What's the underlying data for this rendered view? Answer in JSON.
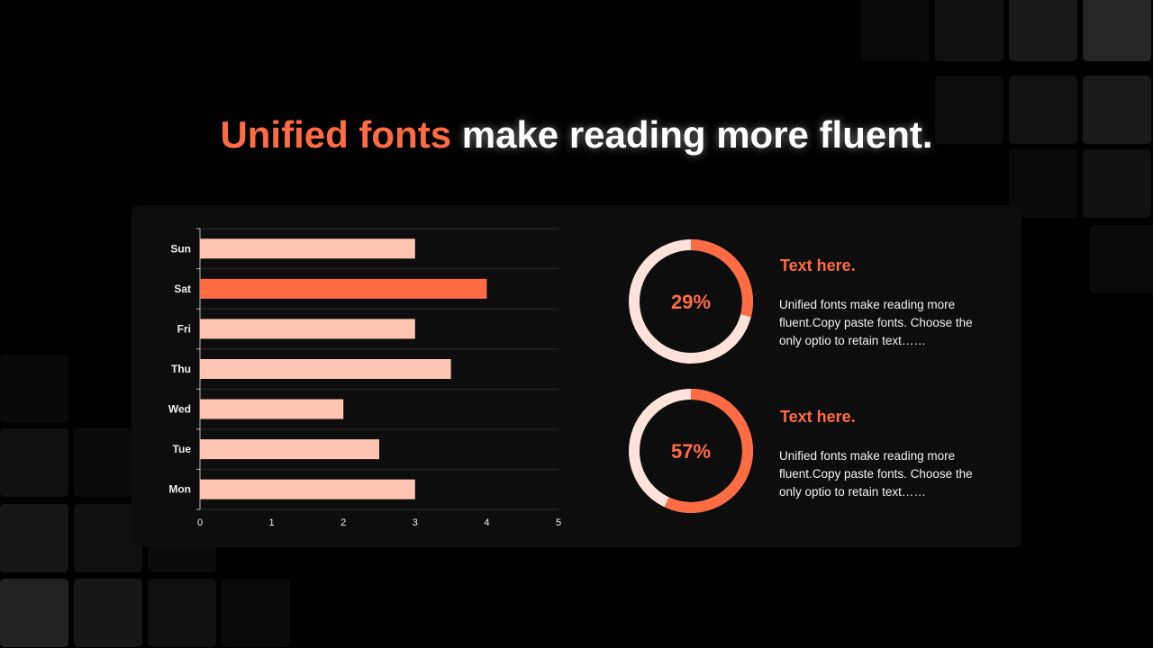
{
  "title": {
    "highlight": "Unified fonts",
    "rest": " make reading more fluent."
  },
  "colors": {
    "accent": "#ff6b43",
    "light_bar": "#ffc4b2",
    "donut_track": "#ffe3da",
    "panel": "#0d0d0d"
  },
  "chart_data": {
    "type": "bar",
    "orientation": "horizontal",
    "categories": [
      "Sun",
      "Sat",
      "Fri",
      "Thu",
      "Wed",
      "Tue",
      "Mon"
    ],
    "values": [
      3,
      4,
      3,
      3.5,
      2,
      2.5,
      3
    ],
    "highlighted_category": "Sat",
    "xlim": [
      0,
      5
    ],
    "xticks": [
      "0",
      "1",
      "2",
      "3",
      "4",
      "5"
    ],
    "grid": true
  },
  "cards": [
    {
      "percent": 29,
      "percent_label": "29%",
      "title": "Text here.",
      "text": "Unified fonts make reading more fluent.Copy paste fonts. Choose the only optio to retain text……"
    },
    {
      "percent": 57,
      "percent_label": "57%",
      "title": "Text here.",
      "text": "Unified fonts make reading more fluent.Copy paste fonts. Choose the only optio to retain text……"
    }
  ]
}
